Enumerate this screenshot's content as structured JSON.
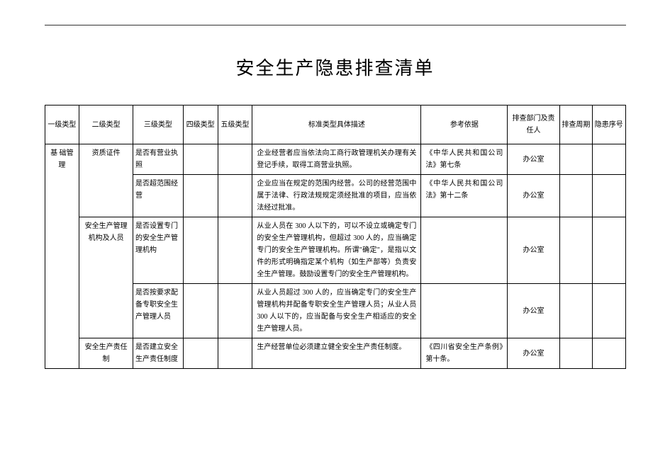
{
  "title": "安全生产隐患排查清单",
  "headers": {
    "c1": "一级类型",
    "c2": "二级类型",
    "c3": "三级类型",
    "c4": "四级类型",
    "c5": "五级类型",
    "c6": "标准类型具体描述",
    "c7": "参考依据",
    "c8": "排查部门及责任人",
    "c9": "排查周期",
    "c10": "隐患序号"
  },
  "cells": {
    "lvl1": "基  础管理",
    "r1_lvl2": "资质证件",
    "r1_lvl3": "是否有营业执照",
    "r1_desc": "企业经营者应当依法向工商行政管理机关办理有关登记手续，取得工商营业执照。",
    "r1_ref": "《中华人民共和国公司法》第七条",
    "r1_dept": "办公室",
    "r2_lvl3": "是否超范围经营",
    "r2_desc": "企业应当在规定的范围内经营。公司的经营范围中属于法律、行政法规规定须经批准的项目，应当依法经过批准。",
    "r2_ref": "《中华人民共和国公司法》第十二条",
    "r2_dept": "办公室",
    "r3_lvl2": "安全生产管理机构及人员",
    "r3_lvl3": "是否设置专门的安全生产管理机构",
    "r3_desc": "从业人员在  300 人以下的，可以不设立或确定专门的安全生产管理机构，但超过 300 人的，应当确定专门的安全生产管理机构。所谓\"确定\"，是指以文件的形式明确指定某个机构（如生产部等）负责安全生产管理。鼓励设置专门的安全生产管理机构。",
    "r3_dept": "办公室",
    "r4_lvl3": "是否按要求配备专职安全生产管理人员",
    "r4_desc": "从业人员超过   300 人的，应当确定专门的安全生产管理机构并配备专职安全生产管理人员；从业人员    300 人以下的，应当配备与安全生产相适应的安全生产管理人员。",
    "r4_dept": "办公室",
    "r5_lvl2": "安全生产责任制",
    "r5_lvl3": "是否建立安全生产责任制度",
    "r5_desc": "生产经营单位必须建立健全安全生产责任制度。",
    "r5_ref": "《四川省安全生产条例》第十条。",
    "r5_dept": "办公室"
  }
}
